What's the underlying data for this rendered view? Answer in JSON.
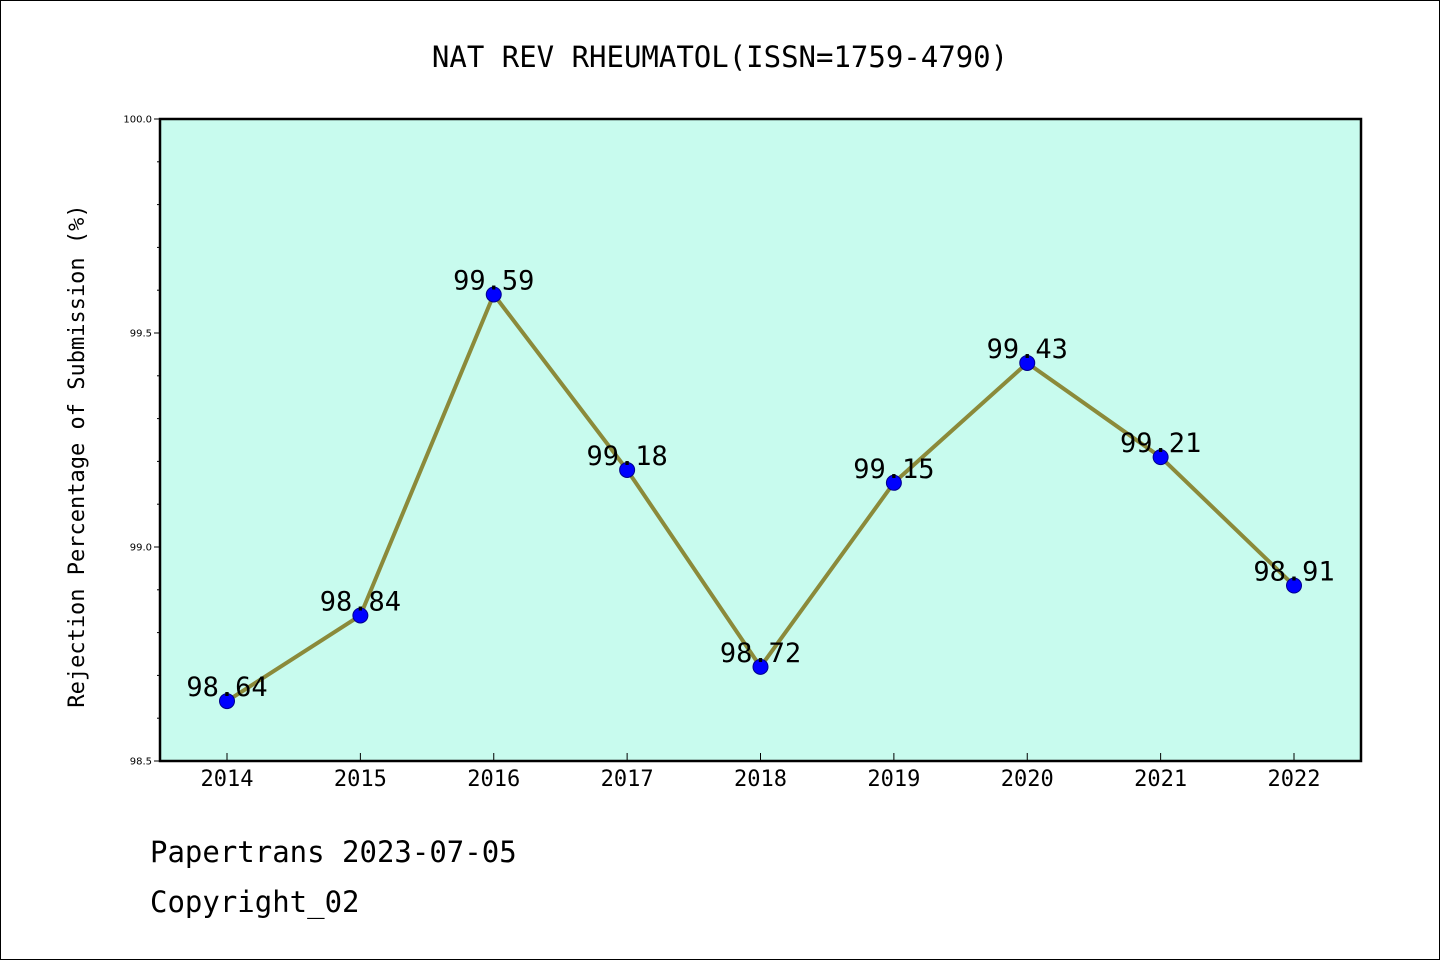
{
  "chart_data": {
    "type": "line",
    "title": "NAT REV RHEUMATOL(ISSN=1759-4790)",
    "xlabel": "",
    "ylabel": "Rejection Percentage of Submission (%)",
    "categories": [
      "2014",
      "2015",
      "2016",
      "2017",
      "2018",
      "2019",
      "2020",
      "2021",
      "2022"
    ],
    "values": [
      98.64,
      98.84,
      99.59,
      99.18,
      98.72,
      99.15,
      99.43,
      99.21,
      98.91
    ],
    "data_labels": [
      "98.64",
      "98.84",
      "99.59",
      "99.18",
      "98.72",
      "99.15",
      "99.43",
      "99.21",
      "98.91"
    ],
    "ylim": [
      98.5,
      100.0
    ],
    "yticks": [
      "98.5",
      "99.0",
      "99.5",
      "100.0"
    ],
    "grid": false,
    "colors": {
      "plot_background": "#c8fbee",
      "line": "#8b8a3a",
      "marker": "#0000ff"
    }
  },
  "footer": {
    "line1": "Papertrans 2023-07-05",
    "line2": "Copyright_02"
  }
}
